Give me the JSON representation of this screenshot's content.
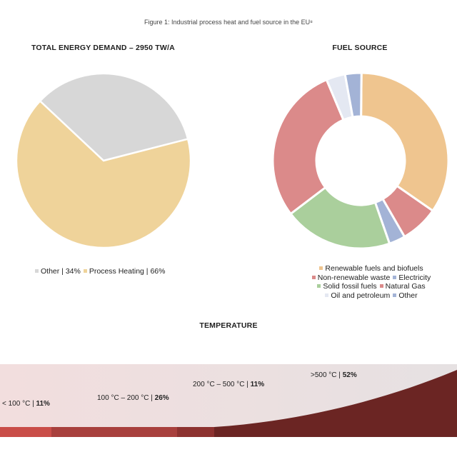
{
  "caption": "Figure 1: Industrial process heat and fuel source in the EU⁸",
  "chart_data": [
    {
      "type": "pie",
      "title": "TOTAL ENERGY DEMAND – 2950 TW/A",
      "categories": [
        "Other",
        "Process Heating"
      ],
      "values": [
        34,
        66
      ],
      "colors": [
        "#d7d7d7",
        "#efd39a"
      ],
      "legend": [
        {
          "text": "Other | 34%",
          "color": "#d7d7d7"
        },
        {
          "text": "Process Heating | 66%",
          "color": "#efd39a"
        }
      ]
    },
    {
      "type": "pie",
      "subtype": "donut",
      "title": "FUEL SOURCE",
      "categories": [
        "Renewable fuels and biofuels",
        "Non-renewable waste",
        "Electricity",
        "Solid fossil fuels",
        "Natural Gas",
        "Oil and petroleum",
        "Other"
      ],
      "values": [
        34.5,
        7,
        3,
        20,
        29,
        3.5,
        3
      ],
      "slice_colors": [
        "#efc58f",
        "#db8a8a",
        "#a3b3d6",
        "#aacf9c",
        "#db8a8a",
        "#e4e8f2",
        "#a3b3d6"
      ],
      "legend_rows": [
        [
          {
            "text": "Renewable fuels and biofuels",
            "color": "#efc58f"
          }
        ],
        [
          {
            "text": "Non-renewable waste",
            "color": "#db8a8a"
          },
          {
            "text": "Electricity",
            "color": "#a3b3d6"
          }
        ],
        [
          {
            "text": "Solid fossil fuels",
            "color": "#aacf9c"
          },
          {
            "text": "Natural Gas",
            "color": "#db8a8a"
          }
        ],
        [
          {
            "text": "Oil and petroleum",
            "color": "#e4e8f2"
          },
          {
            "text": "Other",
            "color": "#a3b3d6"
          }
        ]
      ]
    },
    {
      "type": "area",
      "title": "TEMPERATURE",
      "categories": [
        "< 100 °C",
        "100 °C – 200 °C",
        "200 °C – 500 °C",
        ">500 °C"
      ],
      "values": [
        11,
        26,
        11,
        52
      ],
      "colors": [
        "#c94d48",
        "#a8403d",
        "#8d3230",
        "#6b2523"
      ]
    }
  ]
}
